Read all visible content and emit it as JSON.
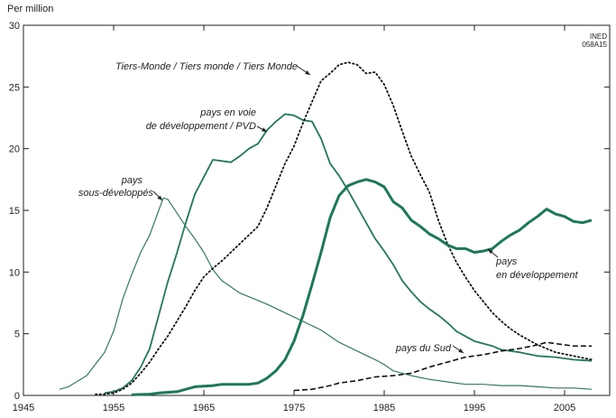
{
  "chart_data": {
    "type": "line",
    "ylabel": "Per million",
    "xlim": [
      1945,
      2010
    ],
    "ylim": [
      0,
      30
    ],
    "xticks": [
      1945,
      1955,
      1965,
      1975,
      1985,
      1995,
      2005
    ],
    "yticks": [
      0,
      5,
      10,
      15,
      20,
      25,
      30
    ],
    "grid": false,
    "source_mark": [
      "INED",
      "058A15"
    ],
    "series": [
      {
        "name": "pays sous-développés",
        "style": "thin-solid",
        "color": "#2e7d5f",
        "x": [
          1949,
          1950,
          1952,
          1954,
          1955,
          1956,
          1957,
          1958,
          1959,
          1960,
          1960.5,
          1961,
          1962,
          1963,
          1964,
          1965,
          1966,
          1967,
          1968,
          1969,
          1970,
          1972,
          1974,
          1976,
          1978,
          1980,
          1982,
          1984,
          1985,
          1986,
          1988,
          1990,
          1992,
          1994,
          1996,
          1998,
          2000,
          2002,
          2004,
          2006,
          2008
        ],
        "y": [
          0.5,
          0.7,
          1.6,
          3.5,
          5.2,
          7.8,
          9.8,
          11.6,
          13,
          15,
          16,
          15.9,
          14.8,
          13.7,
          12.7,
          11.6,
          10.2,
          9.3,
          8.8,
          8.3,
          8,
          7.4,
          6.7,
          6,
          5.3,
          4.3,
          3.6,
          2.9,
          2.5,
          2.0,
          1.6,
          1.3,
          1.1,
          0.9,
          0.9,
          0.8,
          0.8,
          0.7,
          0.6,
          0.6,
          0.5
        ]
      },
      {
        "name": "pays en voie de développement / PVD",
        "style": "medium-solid",
        "color": "#1f7a5a",
        "x": [
          1954,
          1955,
          1956,
          1957,
          1958,
          1959,
          1960,
          1961,
          1962,
          1963,
          1964,
          1965,
          1966,
          1967,
          1968,
          1969,
          1970,
          1971,
          1972,
          1973,
          1974,
          1975,
          1976,
          1977,
          1978,
          1979,
          1980,
          1981,
          1982,
          1983,
          1984,
          1985,
          1986,
          1987,
          1988,
          1989,
          1990,
          1991,
          1992,
          1993,
          1994,
          1995,
          1996,
          1997,
          1998,
          2000,
          2002,
          2004,
          2006,
          2008
        ],
        "y": [
          0.2,
          0.3,
          0.6,
          1.2,
          2.3,
          3.8,
          6.5,
          9.2,
          11.5,
          14,
          16.3,
          17.7,
          19.1,
          19,
          18.9,
          19.4,
          20,
          20.4,
          21.5,
          22.2,
          22.8,
          22.7,
          22.3,
          22.2,
          20.8,
          18.8,
          17.8,
          16.6,
          15.3,
          14,
          12.7,
          11.7,
          10.6,
          9.3,
          8.4,
          7.6,
          7,
          6.5,
          5.9,
          5.2,
          4.8,
          4.4,
          4.2,
          4.0,
          3.7,
          3.5,
          3.2,
          3.1,
          2.9,
          2.8
        ]
      },
      {
        "name": "Tiers-Monde / Tiers monde / Tiers Monde",
        "style": "dotted",
        "color": "#111111",
        "x": [
          1953,
          1954,
          1955,
          1956,
          1957,
          1958,
          1959,
          1960,
          1961,
          1962,
          1963,
          1964,
          1965,
          1966,
          1967,
          1968,
          1969,
          1970,
          1971,
          1972,
          1973,
          1974,
          1975,
          1976,
          1977,
          1978,
          1979,
          1980,
          1981,
          1982,
          1983,
          1984,
          1985,
          1986,
          1987,
          1988,
          1989,
          1990,
          1991,
          1992,
          1993,
          1994,
          1995,
          1996,
          1997,
          1998,
          1999,
          2000,
          2001,
          2002,
          2003,
          2004,
          2006,
          2008
        ],
        "y": [
          0.1,
          0.1,
          0.2,
          0.5,
          1.0,
          1.8,
          2.7,
          3.8,
          4.8,
          6,
          7.2,
          8.5,
          9.6,
          10.3,
          10.9,
          11.6,
          12.3,
          13,
          13.7,
          15.2,
          17,
          18.8,
          20.2,
          22.1,
          23.8,
          25.5,
          26.1,
          26.8,
          27,
          26.8,
          26.1,
          26.2,
          25.2,
          23.5,
          21.4,
          19.4,
          17.9,
          16.5,
          14.2,
          12.3,
          10.8,
          9.6,
          8.5,
          7.6,
          6.7,
          6.0,
          5.4,
          4.9,
          4.5,
          4.1,
          3.8,
          3.5,
          3.2,
          2.9
        ]
      },
      {
        "name": "pays en développement",
        "style": "thick-solid",
        "color": "#1a7a55",
        "x": [
          1957,
          1959,
          1960,
          1962,
          1963,
          1964,
          1966,
          1967,
          1970,
          1971,
          1972,
          1973,
          1974,
          1975,
          1976,
          1977,
          1978,
          1979,
          1980,
          1981,
          1982,
          1983,
          1984,
          1985,
          1986,
          1987,
          1988,
          1989,
          1990,
          1991,
          1992,
          1993,
          1994,
          1995,
          1996,
          1997,
          1998,
          1999,
          2000,
          2001,
          2002,
          2003,
          2004,
          2005,
          2006,
          2007,
          2008
        ],
        "y": [
          0.05,
          0.1,
          0.2,
          0.3,
          0.5,
          0.7,
          0.8,
          0.9,
          0.9,
          1.0,
          1.4,
          2.0,
          2.9,
          4.4,
          6.5,
          9,
          11.6,
          14.4,
          16.2,
          17,
          17.3,
          17.5,
          17.3,
          16.9,
          15.7,
          15.2,
          14.2,
          13.7,
          13.1,
          12.7,
          12.2,
          11.9,
          11.9,
          11.6,
          11.7,
          11.9,
          12.5,
          13.0,
          13.4,
          14,
          14.5,
          15.1,
          14.7,
          14.5,
          14.1,
          14,
          14.2
        ]
      },
      {
        "name": "pays du Sud",
        "style": "dashed",
        "color": "#111111",
        "x": [
          1975,
          1977,
          1979,
          1980,
          1982,
          1984,
          1986,
          1988,
          1990,
          1992,
          1994,
          1996,
          1998,
          2000,
          2002,
          2003,
          2004,
          2006,
          2008
        ],
        "y": [
          0.4,
          0.5,
          0.8,
          1.0,
          1.2,
          1.5,
          1.6,
          1.8,
          2.3,
          2.7,
          3.1,
          3.3,
          3.6,
          3.8,
          4.1,
          4.3,
          4.2,
          4.0,
          4.0
        ]
      }
    ],
    "annotations": [
      {
        "series": 2,
        "text": [
          "Tiers-Monde / Tiers monde / Tiers Monde"
        ]
      },
      {
        "series": 1,
        "text": [
          "pays en voie",
          "de développement / PVD"
        ]
      },
      {
        "series": 0,
        "text": [
          "pays",
          "sous-développés"
        ]
      },
      {
        "series": 3,
        "text": [
          "pays",
          "en développement"
        ]
      },
      {
        "series": 4,
        "text": [
          "pays du Sud"
        ]
      }
    ]
  }
}
